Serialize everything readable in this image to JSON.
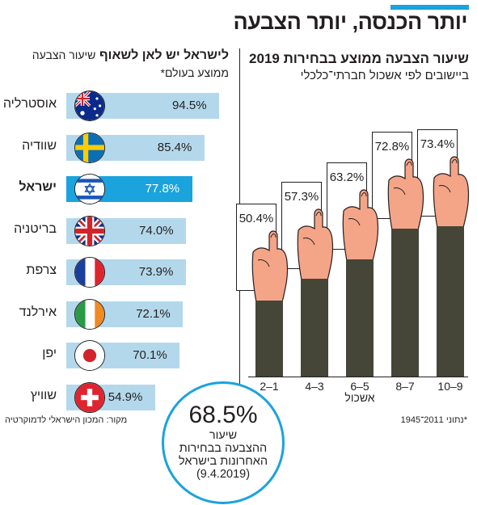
{
  "header": {
    "title": "יותר הכנסה, יותר הצבעה",
    "accent_color": "#1aa3dc"
  },
  "right_panel": {
    "title": "שיעור הצבעה ממוצע בבחירות 2019",
    "subtitle": "ביישובים לפי אשכול חברתי־כלכלי"
  },
  "left_panel": {
    "title_bold": "לישראל יש לאן לשאוף",
    "title_rest": "שיעור הצבעה",
    "subtitle": "ממוצע בעולם*"
  },
  "chart_data": [
    {
      "type": "bar",
      "orientation": "horizontal",
      "categories": [
        "אוסטרליה",
        "שוודיה",
        "ישראל",
        "בריטניה",
        "צרפת",
        "אירלנד",
        "יפן",
        "שוויץ"
      ],
      "values": [
        94.5,
        85.4,
        77.8,
        74.0,
        73.9,
        72.1,
        70.1,
        54.9
      ],
      "labels": [
        "94.5%",
        "85.4%",
        "77.8%",
        "74.0%",
        "73.9%",
        "72.1%",
        "70.1%",
        "54.9%"
      ],
      "highlight": "ישראל",
      "flags": [
        "australia-flag",
        "sweden-flag",
        "israel-flag",
        "uk-flag",
        "france-flag",
        "ireland-flag",
        "japan-flag",
        "switzerland-flag"
      ],
      "xlim": [
        0,
        100
      ],
      "bar_color": "#b4d8eb",
      "highlight_color": "#1aa3dc"
    },
    {
      "type": "bar",
      "categories": [
        "2–1",
        "4–3",
        "6–5",
        "8–7",
        "10–9"
      ],
      "values": [
        50.4,
        57.3,
        63.2,
        72.8,
        73.4
      ],
      "labels": [
        "50.4%",
        "57.3%",
        "63.2%",
        "72.8%",
        "73.4%"
      ],
      "xlabel": "אשכול",
      "ylim": [
        0,
        100
      ],
      "bar_color": "#454538",
      "skin_color": "#f4a487"
    }
  ],
  "highlight_stat": {
    "value": "68.5%",
    "line1": "שיעור",
    "line2": "ההצבעה בבחירות",
    "line3": "האחרונות בישראל",
    "date": "(9.4.2019)"
  },
  "footnotes": {
    "source": "מקור: המכון הישראלי לדמוקרטיה",
    "data_note": "*נתוני 2011־1945"
  }
}
